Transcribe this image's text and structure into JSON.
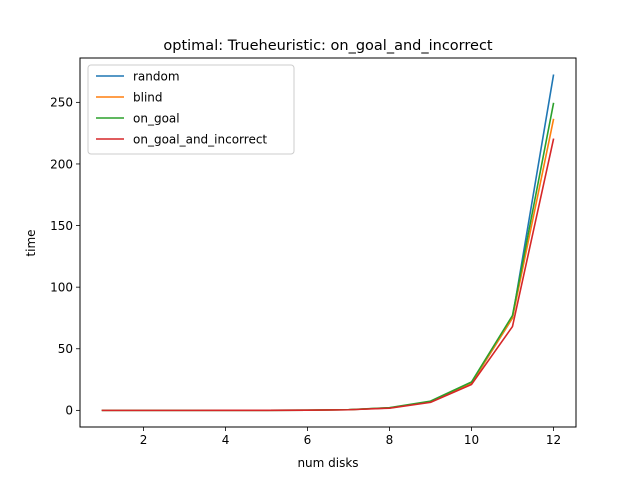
{
  "chart_data": {
    "type": "line",
    "title": "optimal: Trueheuristic: on_goal_and_incorrect",
    "xlabel": "num disks",
    "ylabel": "time",
    "xlim": [
      0.45,
      12.55
    ],
    "ylim": [
      -13.5,
      286
    ],
    "xticks": [
      2,
      4,
      6,
      8,
      10,
      12
    ],
    "yticks": [
      0,
      50,
      100,
      150,
      200,
      250
    ],
    "grid": false,
    "legend_position": "top-left",
    "x": [
      1,
      2,
      3,
      4,
      5,
      6,
      7,
      8,
      9,
      10,
      11,
      12
    ],
    "series": [
      {
        "name": "random",
        "color": "#1f77b4",
        "values": [
          0.0,
          0.0,
          0.0,
          0.01,
          0.05,
          0.15,
          0.5,
          2.0,
          7.0,
          22.0,
          75.0,
          272.0
        ]
      },
      {
        "name": "blind",
        "color": "#ff7f0e",
        "values": [
          0.0,
          0.0,
          0.0,
          0.01,
          0.05,
          0.15,
          0.5,
          2.0,
          7.0,
          22.0,
          75.0,
          236.0
        ]
      },
      {
        "name": "on_goal",
        "color": "#2ca02c",
        "values": [
          0.0,
          0.0,
          0.0,
          0.01,
          0.05,
          0.15,
          0.6,
          2.2,
          7.5,
          23.0,
          77.0,
          249.0
        ]
      },
      {
        "name": "on_goal_and_incorrect",
        "color": "#d62728",
        "values": [
          0.0,
          0.0,
          0.0,
          0.01,
          0.05,
          0.15,
          0.5,
          1.8,
          6.5,
          21.0,
          68.0,
          220.0
        ]
      }
    ]
  }
}
